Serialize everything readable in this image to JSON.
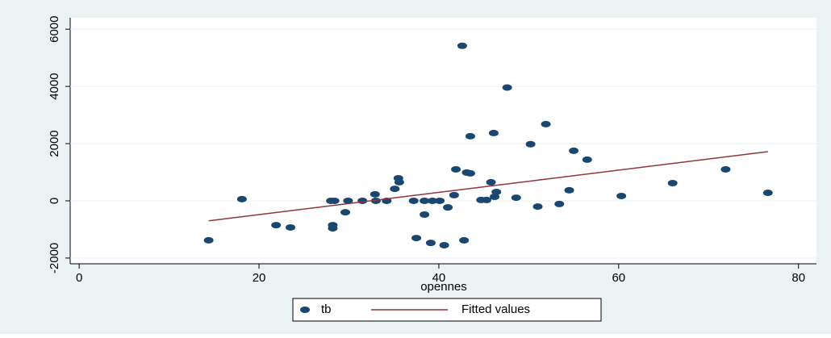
{
  "chart_data": {
    "type": "scatter",
    "xlabel": "opennes",
    "xlim": [
      -1,
      82
    ],
    "ylim": [
      -2200,
      6400
    ],
    "xticks": [
      0,
      20,
      40,
      60,
      80
    ],
    "yticks": [
      -2000,
      0,
      2000,
      4000,
      6000
    ],
    "grid": true,
    "legend": "bottom",
    "series": [
      {
        "name": "tb",
        "color": "#1a476f",
        "type": "scatter",
        "x": [
          14.4,
          18.1,
          21.9,
          23.5,
          28.0,
          28.2,
          28.2,
          28.4,
          29.6,
          29.9,
          31.5,
          32.9,
          33.0,
          34.2,
          35.1,
          35.5,
          35.6,
          37.2,
          37.5,
          38.4,
          38.4,
          39.1,
          39.3,
          40.1,
          40.6,
          41.0,
          41.7,
          41.9,
          42.6,
          42.8,
          43.1,
          43.5,
          43.5,
          44.7,
          45.3,
          45.8,
          46.1,
          46.2,
          46.4,
          47.6,
          48.6,
          50.2,
          51.0,
          51.9,
          53.4,
          54.5,
          55.0,
          56.5,
          60.3,
          66.0,
          71.9,
          76.6
        ],
        "values": [
          -1380,
          60,
          -850,
          -930,
          0,
          -850,
          -960,
          0,
          -400,
          0,
          0,
          230,
          0,
          0,
          420,
          790,
          650,
          0,
          -1300,
          0,
          -480,
          -1470,
          0,
          0,
          -1550,
          -230,
          200,
          1100,
          5420,
          -1380,
          990,
          960,
          2260,
          30,
          30,
          650,
          2370,
          140,
          310,
          3960,
          110,
          1980,
          -200,
          2680,
          -110,
          370,
          1750,
          1440,
          170,
          620,
          1100,
          280
        ]
      },
      {
        "name": "Fitted values",
        "color": "#90353b",
        "type": "line",
        "x": [
          14.4,
          76.6
        ],
        "values": [
          -700,
          1720
        ]
      }
    ]
  }
}
